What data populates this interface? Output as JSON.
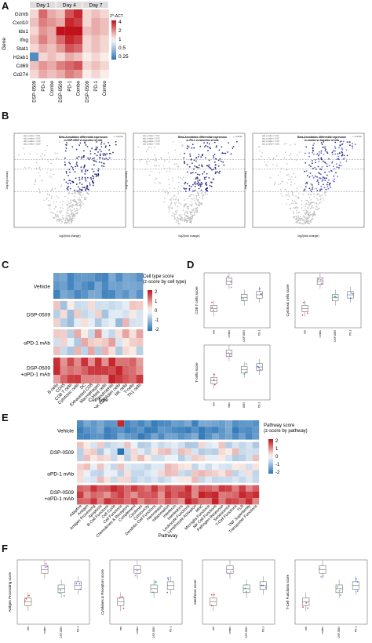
{
  "panel_labels": {
    "A": "A",
    "B": "B",
    "C": "C",
    "D": "D",
    "E": "E",
    "F": "F"
  },
  "panelA": {
    "days": [
      "Day 1",
      "Day 4",
      "Day 7"
    ],
    "ylabel": "Gene",
    "genes": [
      "Gzmb",
      "Cxcl10",
      "Ido1",
      "Ifng",
      "Stat1",
      "H2ab1",
      "Cd69",
      "Cd274"
    ],
    "groups": [
      "DSP-0509",
      "PD-1",
      "Combo"
    ],
    "legend_title": "2^-ΔCT",
    "legend_ticks": [
      "4",
      "2",
      "1",
      "0.5",
      "0.25"
    ],
    "values": [
      [
        [
          0.1,
          0.6,
          0.3
        ],
        [
          0.2,
          0.7,
          0.9
        ],
        [
          0.1,
          0.2,
          0.1
        ]
      ],
      [
        [
          0.2,
          0.5,
          0.4
        ],
        [
          0.3,
          0.9,
          0.8
        ],
        [
          0.1,
          0.3,
          0.2
        ]
      ],
      [
        [
          0.1,
          0.4,
          0.3
        ],
        [
          1.0,
          1.0,
          1.0
        ],
        [
          0.2,
          0.3,
          0.2
        ]
      ],
      [
        [
          0.2,
          0.5,
          0.3
        ],
        [
          0.6,
          0.9,
          0.8
        ],
        [
          0.1,
          0.2,
          0.1
        ]
      ],
      [
        [
          0.1,
          0.3,
          0.2
        ],
        [
          0.4,
          0.7,
          0.6
        ],
        [
          0.1,
          0.2,
          0.1
        ]
      ],
      [
        [
          -0.8,
          0.1,
          0.2
        ],
        [
          0.1,
          0.3,
          0.2
        ],
        [
          0.0,
          0.1,
          0.0
        ]
      ],
      [
        [
          0.2,
          0.4,
          0.3
        ],
        [
          0.5,
          0.6,
          0.7
        ],
        [
          0.1,
          0.2,
          0.1
        ]
      ],
      [
        [
          0.1,
          0.3,
          0.2
        ],
        [
          0.3,
          0.5,
          0.4
        ],
        [
          0.0,
          0.1,
          0.0
        ]
      ]
    ]
  },
  "panelB": {
    "plots": [
      {
        "title": "Beta-Annotation differential expression\nin DSP-0509 vs baseline of mtb",
        "xlabel": "log2(fold change)",
        "ylabel": "-log10(p-value)"
      },
      {
        "title": "Beta-Annotation differential expression\nin PD-1 vs baseline of mtb",
        "xlabel": "log2(fold change)",
        "ylabel": "-log10(p-value)"
      },
      {
        "title": "Beta-Annotation differential expression\nin combo vs baseline of mtb",
        "xlabel": "log2(fold change)",
        "ylabel": "-log10(p-value)"
      }
    ],
    "legend": [
      "adj. p-value < 0.01",
      "adj. p-value < 0.05",
      "adj. p-value < 0.10",
      "adj. p-value < 0.50"
    ],
    "legend2": "+ cellular"
  },
  "panelC": {
    "rows": [
      "Vehicle",
      "DSP-0509",
      "αPD-1 mAb",
      "DSP-0509\n+αPD-1 mAb"
    ],
    "columns": [
      "B-cells",
      "CD45",
      "CD8 T cells",
      "Cytotoxic cells",
      "DC",
      "Exhausted CD8",
      "Macrophages",
      "Mast cells",
      "Neutrophils",
      "NK CD56dim cells",
      "NK cells",
      "T-cells",
      "Th1 cells"
    ],
    "xlabel": "Cell type",
    "legend_title": "Cell type score\n(z-score by cell type)",
    "legend_ticks": [
      "2",
      "1",
      "0",
      "-1",
      "-2"
    ]
  },
  "panelD": {
    "plots": [
      {
        "ylabel": "CD8 T cells score",
        "groups": [
          "veh",
          "combo",
          "DSP-0509",
          "PD-1"
        ]
      },
      {
        "ylabel": "Cytotoxic cells score",
        "groups": [
          "veh",
          "combo",
          "DSP-0509",
          "PD-1"
        ]
      },
      {
        "ylabel": "T-cells score",
        "groups": [
          "veh",
          "combo",
          "DSP-0509",
          "PD-1"
        ]
      }
    ]
  },
  "panelE": {
    "rows": [
      "Vehicle",
      "DSP-0509",
      "αPD-1 mAb",
      "DSP-0509\n+αPD-1 mAb"
    ],
    "columns": [
      "Adaptive",
      "Antigen",
      "Antigen Processing",
      "Apoptosis",
      "B-Cell Functions",
      "Cell Cycle",
      "Cell Functions",
      "Chemokines & Receptors",
      "Complement",
      "Cytokines",
      "Cytotoxicity",
      "Dendritic Cell Functions",
      "Hemostasis",
      "Inflammation",
      "Interferon",
      "Interleukins",
      "Leukocyte Functions",
      "Lymphocyte Activation",
      "MHC",
      "Microglia Functions",
      "NK Cell Functions",
      "Pathogen Response",
      "Senescence",
      "T-Cell Functions",
      "TLR",
      "TNF Superfamily",
      "Transporter Functions"
    ],
    "xlabel": "Pathway",
    "legend_title": "Pathway score\n(z-score by pathway)",
    "legend_ticks": [
      "2",
      "1",
      "0",
      "-1",
      "-2"
    ]
  },
  "panelF": {
    "plots": [
      {
        "ylabel": "Antigen Processing score",
        "groups": [
          "veh",
          "combo",
          "DSP-0509",
          "PD-1"
        ]
      },
      {
        "ylabel": "Cytokines & Receptors score",
        "groups": [
          "veh",
          "combo",
          "DSP-0509",
          "PD-1"
        ]
      },
      {
        "ylabel": "Interferon score",
        "groups": [
          "veh",
          "combo",
          "DSP-0509",
          "PD-1"
        ]
      },
      {
        "ylabel": "T-Cell Functions score",
        "groups": [
          "veh",
          "combo",
          "DSP-0509",
          "PD-1"
        ]
      }
    ]
  },
  "colors": {
    "red": "#c0121a",
    "blue": "#2a74b6",
    "lightblue": "#bcd6ea",
    "pale": "#f7e6df",
    "navy": "#1a1a7a"
  }
}
